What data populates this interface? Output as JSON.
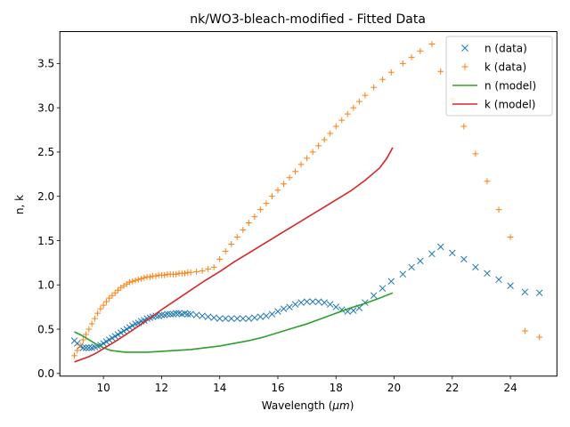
{
  "chart_data": {
    "type": "line",
    "title": "nk/WO3-bleach-modified - Fitted Data",
    "xlabel_prefix": "Wavelength (",
    "xlabel_symbol": "μm",
    "xlabel_suffix": ")",
    "ylabel": "n, k",
    "xlim": [
      8.5,
      25.6
    ],
    "ylim": [
      -0.03,
      3.86
    ],
    "xticks": [
      10,
      12,
      14,
      16,
      18,
      20,
      22,
      24
    ],
    "yticks": [
      0.0,
      0.5,
      1.0,
      1.5,
      2.0,
      2.5,
      3.0,
      3.5
    ],
    "grid": false,
    "legend_position": "top-right",
    "series": [
      {
        "name": "n (data)",
        "kind": "scatter",
        "marker": "x",
        "color": "#1f77b4",
        "x": [
          9.0,
          9.1,
          9.2,
          9.3,
          9.4,
          9.5,
          9.6,
          9.7,
          9.8,
          9.9,
          10.0,
          10.1,
          10.2,
          10.3,
          10.4,
          10.5,
          10.6,
          10.7,
          10.8,
          10.9,
          11.0,
          11.1,
          11.2,
          11.3,
          11.4,
          11.5,
          11.6,
          11.7,
          11.8,
          11.9,
          12.0,
          12.1,
          12.2,
          12.3,
          12.4,
          12.5,
          12.6,
          12.7,
          12.8,
          12.9,
          13.0,
          13.2,
          13.4,
          13.6,
          13.8,
          14.0,
          14.2,
          14.4,
          14.6,
          14.8,
          15.0,
          15.2,
          15.4,
          15.6,
          15.8,
          16.0,
          16.2,
          16.4,
          16.6,
          16.8,
          17.0,
          17.2,
          17.4,
          17.6,
          17.8,
          18.0,
          18.2,
          18.4,
          18.6,
          18.8,
          19.0,
          19.3,
          19.6,
          19.9,
          20.3,
          20.6,
          20.9,
          21.3,
          21.6,
          22.0,
          22.4,
          22.8,
          23.2,
          23.6,
          24.0,
          24.5,
          25.0
        ],
        "y": [
          0.37,
          0.34,
          0.31,
          0.29,
          0.29,
          0.29,
          0.29,
          0.3,
          0.31,
          0.32,
          0.34,
          0.36,
          0.38,
          0.4,
          0.42,
          0.44,
          0.46,
          0.48,
          0.5,
          0.52,
          0.54,
          0.56,
          0.57,
          0.59,
          0.6,
          0.62,
          0.63,
          0.64,
          0.65,
          0.65,
          0.66,
          0.66,
          0.67,
          0.67,
          0.67,
          0.68,
          0.68,
          0.67,
          0.68,
          0.67,
          0.67,
          0.66,
          0.65,
          0.64,
          0.63,
          0.62,
          0.62,
          0.62,
          0.62,
          0.62,
          0.62,
          0.63,
          0.64,
          0.65,
          0.67,
          0.7,
          0.73,
          0.75,
          0.78,
          0.8,
          0.81,
          0.81,
          0.81,
          0.8,
          0.78,
          0.75,
          0.72,
          0.7,
          0.71,
          0.74,
          0.8,
          0.88,
          0.96,
          1.04,
          1.12,
          1.2,
          1.27,
          1.35,
          1.43,
          1.36,
          1.29,
          1.2,
          1.13,
          1.06,
          0.99,
          0.92,
          0.91
        ]
      },
      {
        "name": "k (data)",
        "kind": "scatter",
        "marker": "+",
        "color": "#ff7f0e",
        "x": [
          9.0,
          9.1,
          9.2,
          9.3,
          9.4,
          9.5,
          9.6,
          9.7,
          9.8,
          9.9,
          10.0,
          10.1,
          10.2,
          10.3,
          10.4,
          10.5,
          10.6,
          10.7,
          10.8,
          10.9,
          11.0,
          11.1,
          11.2,
          11.3,
          11.4,
          11.5,
          11.6,
          11.7,
          11.8,
          11.9,
          12.0,
          12.1,
          12.2,
          12.3,
          12.4,
          12.5,
          12.6,
          12.7,
          12.8,
          12.9,
          13.0,
          13.2,
          13.4,
          13.6,
          13.8,
          14.0,
          14.2,
          14.4,
          14.6,
          14.8,
          15.0,
          15.2,
          15.4,
          15.6,
          15.8,
          16.0,
          16.2,
          16.4,
          16.6,
          16.8,
          17.0,
          17.2,
          17.4,
          17.6,
          17.8,
          18.0,
          18.2,
          18.4,
          18.6,
          18.8,
          19.0,
          19.3,
          19.6,
          19.9,
          20.3,
          20.6,
          20.9,
          21.3,
          21.6,
          22.0,
          22.4,
          22.8,
          23.2,
          23.6,
          24.0,
          24.5,
          25.0
        ],
        "y": [
          0.2,
          0.26,
          0.32,
          0.38,
          0.44,
          0.5,
          0.56,
          0.62,
          0.68,
          0.73,
          0.77,
          0.81,
          0.85,
          0.88,
          0.91,
          0.94,
          0.97,
          0.99,
          1.01,
          1.03,
          1.04,
          1.05,
          1.06,
          1.07,
          1.08,
          1.09,
          1.09,
          1.1,
          1.1,
          1.11,
          1.11,
          1.11,
          1.12,
          1.12,
          1.12,
          1.12,
          1.13,
          1.13,
          1.13,
          1.14,
          1.14,
          1.15,
          1.16,
          1.18,
          1.2,
          1.29,
          1.38,
          1.46,
          1.54,
          1.62,
          1.7,
          1.77,
          1.85,
          1.92,
          2.0,
          2.07,
          2.14,
          2.21,
          2.28,
          2.36,
          2.43,
          2.5,
          2.57,
          2.64,
          2.71,
          2.79,
          2.86,
          2.93,
          3.0,
          3.07,
          3.14,
          3.23,
          3.32,
          3.4,
          3.5,
          3.57,
          3.64,
          3.72,
          3.41,
          3.1,
          2.79,
          2.48,
          2.17,
          1.85,
          1.54,
          0.48,
          0.41
        ]
      },
      {
        "name": "n (model)",
        "kind": "line",
        "color": "#2ca02c",
        "x": [
          9.0,
          9.25,
          9.5,
          9.75,
          10.0,
          10.25,
          10.5,
          10.75,
          11.0,
          11.25,
          11.5,
          11.75,
          12.0,
          12.5,
          13.0,
          13.5,
          14.0,
          14.5,
          15.0,
          15.5,
          16.0,
          16.5,
          17.0,
          17.5,
          18.0,
          18.5,
          19.0,
          19.5,
          19.95
        ],
        "y": [
          0.47,
          0.43,
          0.38,
          0.33,
          0.29,
          0.26,
          0.25,
          0.24,
          0.24,
          0.24,
          0.24,
          0.245,
          0.25,
          0.26,
          0.27,
          0.29,
          0.31,
          0.34,
          0.37,
          0.41,
          0.46,
          0.51,
          0.56,
          0.62,
          0.68,
          0.74,
          0.79,
          0.85,
          0.91
        ]
      },
      {
        "name": "k (model)",
        "kind": "line",
        "color": "#d62728",
        "x": [
          9.0,
          9.25,
          9.5,
          9.75,
          10.0,
          10.5,
          11.0,
          11.5,
          12.0,
          12.5,
          13.0,
          13.5,
          14.0,
          14.5,
          15.0,
          15.5,
          16.0,
          16.5,
          17.0,
          17.5,
          18.0,
          18.5,
          19.0,
          19.25,
          19.5,
          19.75,
          19.95
        ],
        "y": [
          0.13,
          0.16,
          0.19,
          0.23,
          0.28,
          0.38,
          0.49,
          0.6,
          0.72,
          0.83,
          0.94,
          1.05,
          1.15,
          1.26,
          1.36,
          1.46,
          1.56,
          1.66,
          1.76,
          1.86,
          1.96,
          2.06,
          2.18,
          2.25,
          2.32,
          2.43,
          2.55
        ]
      }
    ]
  }
}
